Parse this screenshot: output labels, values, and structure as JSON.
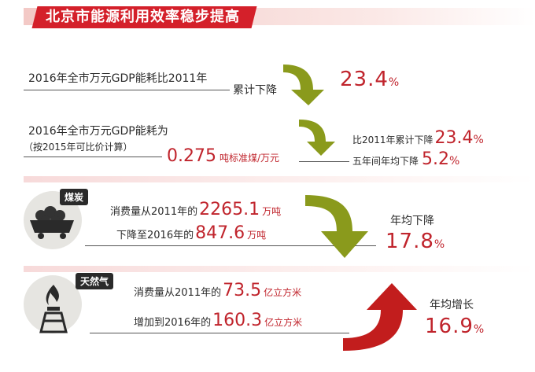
{
  "header": {
    "title": "北京市能源利用效率稳步提高"
  },
  "row1": {
    "label": "2016年全市万元GDP能耗比2011年",
    "sub": "累计下降",
    "value": "23.4",
    "pct": "%"
  },
  "row2": {
    "label": "2016年全市万元GDP能耗为",
    "note": "（按2015年可比价计算）",
    "value": "0.275",
    "unit": "吨标准煤/万元",
    "cmp1_label": "比2011年累计下降",
    "cmp1_value": "23.4",
    "cmp2_label": "五年间年均下降",
    "cmp2_value": "5.2",
    "pct": "%"
  },
  "coal": {
    "badge": "煤炭",
    "line1_prefix": "消费量从2011年的",
    "line1_value": "2265.1",
    "line1_unit": "万吨",
    "line2_prefix": "下降至2016年的",
    "line2_value": "847.6",
    "line2_unit": "万吨",
    "result_label": "年均下降",
    "result_value": "17.8",
    "pct": "%"
  },
  "gas": {
    "badge": "天然气",
    "line1_prefix": "消费量从2011年的",
    "line1_value": "73.5",
    "line1_unit": "亿立方米",
    "line2_prefix": "增加到2016年的",
    "line2_value": "160.3",
    "line2_unit": "亿立方米",
    "result_label": "年均增长",
    "result_value": "16.9",
    "pct": "%"
  },
  "colors": {
    "accent": "#c0242c",
    "arrow_green": "#8a9a1c",
    "arrow_red": "#c21d1d"
  }
}
